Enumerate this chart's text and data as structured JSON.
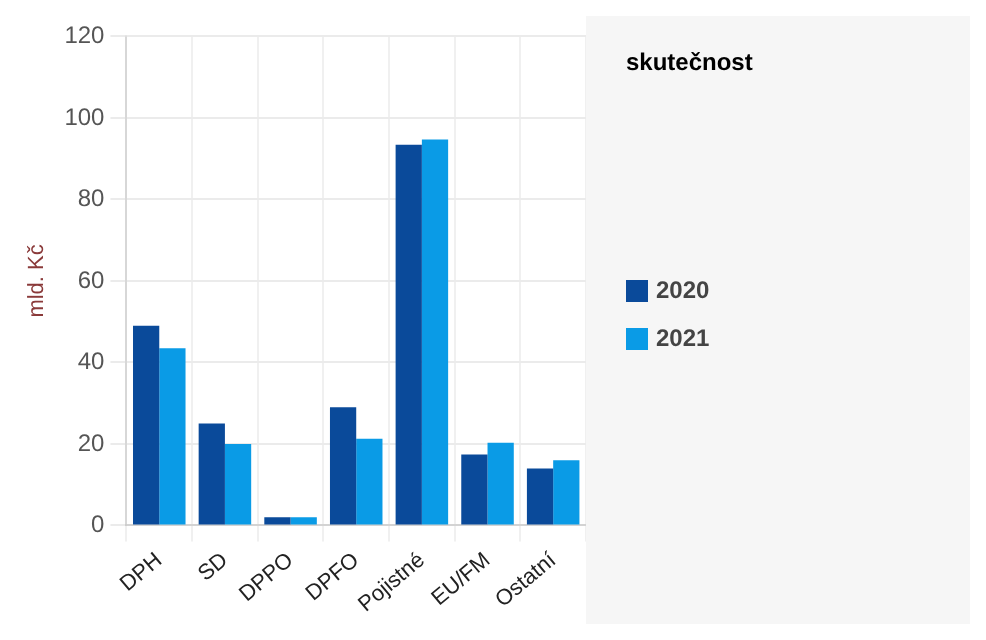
{
  "chart_data": {
    "type": "bar",
    "ylabel": "mld. Kč",
    "legend_title": "skutečnost",
    "categories": [
      "DPH",
      "SD",
      "DPPO",
      "DPFO",
      "Pojistné",
      "EU/FM",
      "Ostatní"
    ],
    "series": [
      {
        "name": "2020",
        "color": "#0a4a9a",
        "values": [
          49,
          25,
          2,
          29,
          93.4,
          17.4,
          14
        ]
      },
      {
        "name": "2021",
        "color": "#0a9be6",
        "values": [
          43.5,
          20,
          2,
          21.3,
          94.7,
          20.3,
          16
        ]
      }
    ],
    "ylim": [
      0,
      120
    ],
    "yticks": [
      0,
      20,
      40,
      60,
      80,
      100,
      120
    ],
    "grid": true,
    "legend": "right"
  }
}
